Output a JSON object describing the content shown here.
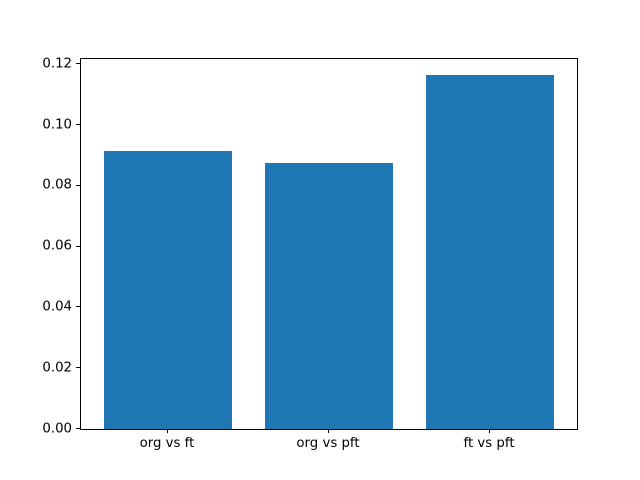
{
  "chart_data": {
    "type": "bar",
    "categories": [
      "org vs ft",
      "org vs pft",
      "ft vs pft"
    ],
    "values": [
      0.0916,
      0.0877,
      0.1164
    ],
    "title": "",
    "xlabel": "",
    "ylabel": "",
    "ylim": [
      0,
      0.1218
    ],
    "yticks": [
      0.0,
      0.02,
      0.04,
      0.06,
      0.08,
      0.1,
      0.12
    ],
    "ytick_label_format": "two-decimals",
    "bar_color": "#1f77b4",
    "bar_width_fraction": 0.8,
    "grid": false,
    "legend": "none",
    "background_color": "#ffffff",
    "spine_color": "#000000",
    "tick_label_color": "#000000"
  }
}
